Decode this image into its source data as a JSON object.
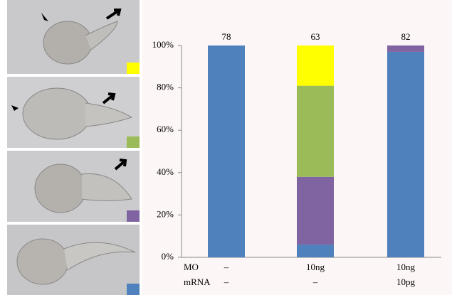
{
  "chart_data": {
    "type": "bar",
    "stacked": true,
    "categories": [
      null,
      null,
      null
    ],
    "counts": [
      78,
      63,
      82
    ],
    "series": [
      {
        "color": "#4f81bd",
        "values": [
          100,
          6,
          97
        ]
      },
      {
        "color": "#8064a2",
        "values": [
          0,
          32,
          3
        ]
      },
      {
        "color": "#9bbb59",
        "values": [
          0,
          43,
          0
        ]
      },
      {
        "color": "#ffff00",
        "values": [
          0,
          19,
          0
        ]
      }
    ],
    "ylim": [
      0,
      100
    ],
    "yticks": [
      {
        "value": 0,
        "label": "0%"
      },
      {
        "value": 20,
        "label": "20%"
      },
      {
        "value": 40,
        "label": "40%"
      },
      {
        "value": 60,
        "label": "60%"
      },
      {
        "value": 80,
        "label": "80%"
      },
      {
        "value": 100,
        "label": "100%"
      }
    ],
    "table": {
      "rows": [
        {
          "label": "MO",
          "cells": [
            "–",
            "10ng",
            "10ng"
          ]
        },
        {
          "label": "mRNA",
          "cells": [
            "–",
            "–",
            "10pg"
          ]
        }
      ]
    }
  }
}
